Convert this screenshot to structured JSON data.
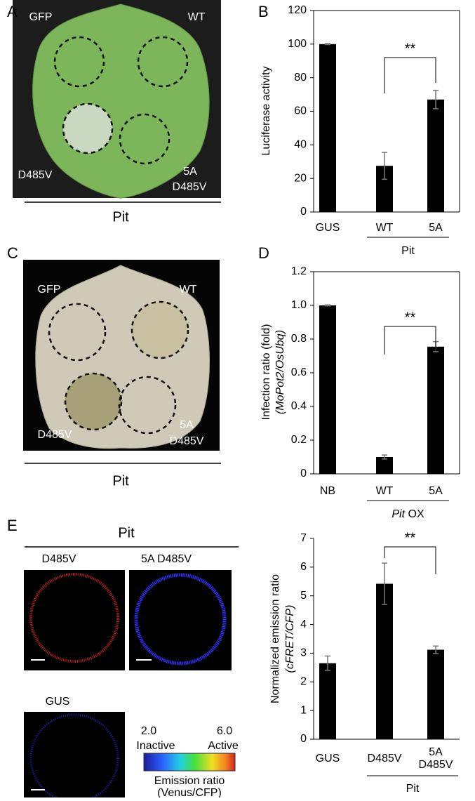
{
  "chart_data": [
    {
      "type": "bar",
      "panel": "B",
      "ylabel": "Luciferase activity",
      "categories": [
        "GUS",
        "WT",
        "5A"
      ],
      "values": [
        100,
        27.5,
        67
      ],
      "errors": [
        0.3,
        8,
        5.5
      ],
      "color": "#000000",
      "ylim": [
        0,
        120
      ],
      "yticks": [
        0,
        20,
        40,
        60,
        80,
        100,
        120
      ],
      "significance": "**",
      "group_label": "Pit"
    },
    {
      "type": "bar",
      "panel": "D",
      "ylabel": "Infection ratio (fold)",
      "ylabel_note": "(MoPot2/OsUbq)",
      "categories": [
        "NB",
        "WT",
        "5A"
      ],
      "values": [
        1.0,
        0.1,
        0.755
      ],
      "errors": [
        0.003,
        0.012,
        0.03
      ],
      "color": "#000000",
      "ylim": [
        0,
        1.2
      ],
      "yticks": [
        0,
        0.2,
        0.4,
        0.6,
        0.8,
        {
          "value": 1,
          "label": "1.0"
        },
        1.2
      ],
      "significance": "**",
      "group_label": "Pit OX"
    },
    {
      "type": "bar",
      "ylabel": "Normalized  emission ratio",
      "ylabel_note": "(cFRET/CFP)",
      "categories": [
        "GUS",
        "D485V",
        "5A D485V"
      ],
      "values": [
        2.65,
        5.42,
        3.12
      ],
      "errors": [
        0.25,
        0.72,
        0.13
      ],
      "color": "#000000",
      "ylim": [
        0,
        7
      ],
      "yticks": [
        0,
        1,
        2,
        3,
        4,
        5,
        6,
        7
      ],
      "significance": "**",
      "group_label": "Pit"
    }
  ],
  "panels": {
    "a": {
      "letter": "A",
      "labels": [
        "GFP",
        "WT",
        "D485V",
        "5A",
        "D485V"
      ],
      "caption": "Pit"
    },
    "c": {
      "letter": "C",
      "labels": [
        "GFP",
        "WT",
        "D485V",
        "5A",
        "D485V"
      ],
      "caption": "Pit"
    },
    "e": {
      "letter": "E",
      "caption": "Pit",
      "images": [
        "D485V",
        "5A D485V",
        "GUS"
      ],
      "colorbar": {
        "min": "2.0",
        "max": "6.0",
        "low": "Inactive",
        "high": "Active",
        "title": "Emission ratio",
        "subtitle": "(Venus/CFP)"
      }
    }
  }
}
